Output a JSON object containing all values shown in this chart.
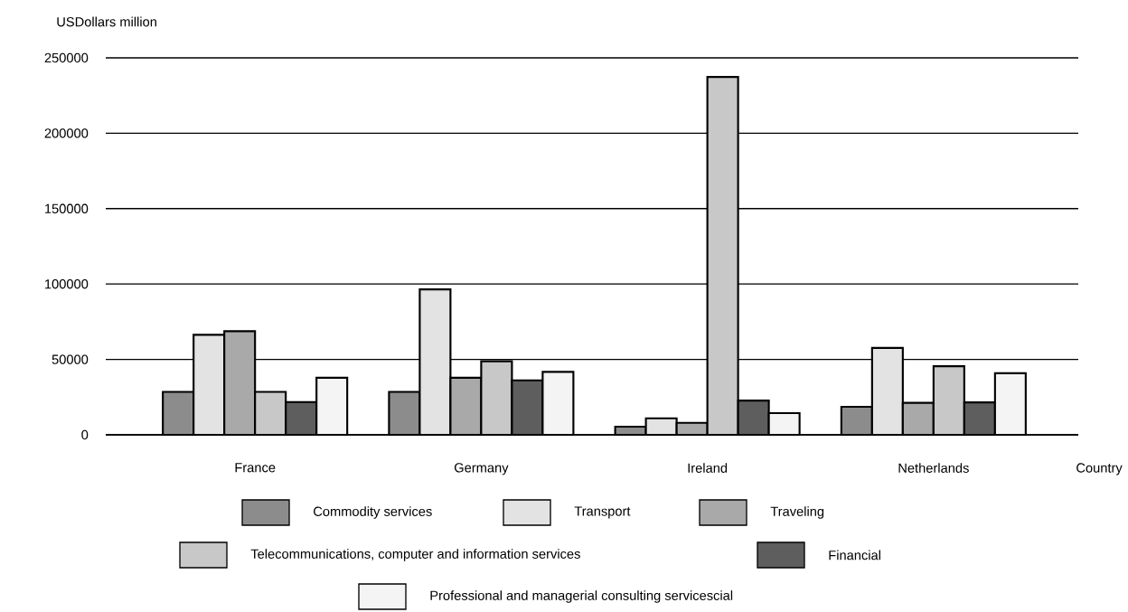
{
  "chart_data": {
    "type": "bar",
    "xlabel": "Country",
    "ylabel": "USDollars million",
    "categories": [
      "France",
      "Germany",
      "Ireland",
      "Netherlands"
    ],
    "series": [
      {
        "name": "Commodity services",
        "color": "#8c8c8c",
        "values": [
          28500,
          28500,
          5400,
          18600
        ]
      },
      {
        "name": "Transport",
        "color": "#e3e3e3",
        "values": [
          66300,
          96400,
          10900,
          57600
        ]
      },
      {
        "name": "Traveling",
        "color": "#a9a9a9",
        "values": [
          68700,
          37800,
          7900,
          21200
        ]
      },
      {
        "name": "Telecommunications, computer and information services",
        "color": "#c8c8c8",
        "values": [
          28500,
          48800,
          237300,
          45500
        ]
      },
      {
        "name": "Financial",
        "color": "#5e5e5e",
        "values": [
          21700,
          36100,
          22700,
          21500
        ]
      },
      {
        "name": "Professional and managerial consulting servicescial",
        "color": "#f4f4f4",
        "values": [
          37800,
          41700,
          14400,
          40800
        ]
      }
    ],
    "ylim": [
      0,
      250000
    ],
    "yticks": [
      0,
      50000,
      100000,
      150000,
      200000,
      250000
    ],
    "grid": "y",
    "legend": "bottom"
  }
}
